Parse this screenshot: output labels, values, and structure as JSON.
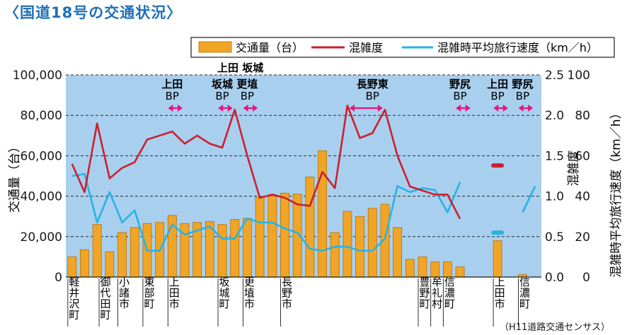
{
  "title": "〈国道18号の交通状況〉",
  "source": "（H11道路交通センサス）",
  "chart_data": {
    "type": "bar",
    "title": "〈国道18号の交通状況〉",
    "legend": [
      {
        "name": "交通量（台）",
        "kind": "bar",
        "color": "#f0a526"
      },
      {
        "name": "混雑度",
        "kind": "line",
        "color": "#cc1f2f"
      },
      {
        "name": "混雑時平均旅行速度（km／h）",
        "kind": "line",
        "color": "#27b3e3"
      }
    ],
    "legend_position": "top-right",
    "grid": true,
    "axes": {
      "left": {
        "label": "交通量（台）",
        "ticks": [
          "0",
          "20,000",
          "40,000",
          "60,000",
          "80,000",
          "100,000"
        ],
        "range": [
          0,
          100000
        ]
      },
      "mid": {
        "label": "混雑度",
        "ticks": [
          "0.0",
          "0.5",
          "1.0",
          "1.5",
          "2.0",
          "2.5"
        ],
        "range": [
          0,
          2.5
        ]
      },
      "right": {
        "label": "混雑時平均旅行速度（km／h）",
        "ticks": [
          "0",
          "20",
          "40",
          "60",
          "80",
          "100"
        ],
        "range": [
          0,
          100
        ]
      }
    },
    "categories": [
      "軽井沢町",
      "御代田町",
      "小諸市",
      "東部町",
      "上田市",
      "坂城町",
      "更埴市",
      "長野市",
      "豊野町",
      "牟礼村",
      "信濃町",
      "上田市",
      "信濃町"
    ],
    "category_slots": [
      1,
      3.5,
      5,
      7,
      9,
      13,
      15,
      18,
      29,
      30,
      31,
      35,
      37
    ],
    "bp_labels": [
      {
        "line1": "上田",
        "line2": "BP",
        "slot": 9
      },
      {
        "line1": "坂城",
        "line2": "BP",
        "slot": 13
      },
      {
        "line1": "更埴",
        "line2": "BP",
        "slot": 15
      },
      {
        "line1": "長野東",
        "line2": "BP",
        "slot": 25
      },
      {
        "line1": "野尻",
        "line2": "BP",
        "slot": 32
      },
      {
        "line1": "上田",
        "line2": "BP",
        "slot": 35
      },
      {
        "line1": "野尻",
        "line2": "BP",
        "slot": 37
      }
    ],
    "bp_arrows": [
      [
        8.5,
        10
      ],
      [
        12.5,
        14
      ],
      [
        14.5,
        16
      ],
      [
        23,
        26
      ],
      [
        31.5,
        33
      ],
      [
        34.5,
        36
      ],
      [
        36.5,
        38
      ]
    ],
    "top_note": "上田 坂城",
    "traffic": [
      [
        1,
        10000
      ],
      [
        2,
        13500
      ],
      [
        3,
        26000
      ],
      [
        4,
        12500
      ],
      [
        5,
        22000
      ],
      [
        6,
        24500
      ],
      [
        7,
        26500
      ],
      [
        8,
        27000
      ],
      [
        9,
        30500
      ],
      [
        10,
        26500
      ],
      [
        11,
        27000
      ],
      [
        12,
        27500
      ],
      [
        13,
        26000
      ],
      [
        14,
        28500
      ],
      [
        15,
        29000
      ],
      [
        16,
        39500
      ],
      [
        17,
        40000
      ],
      [
        18,
        41500
      ],
      [
        19,
        41000
      ],
      [
        20,
        49500
      ],
      [
        21,
        62500
      ],
      [
        22,
        22000
      ],
      [
        23,
        32500
      ],
      [
        24,
        30000
      ],
      [
        25,
        34000
      ],
      [
        26,
        36000
      ],
      [
        27,
        24500
      ],
      [
        28,
        8800
      ],
      [
        29,
        10000
      ],
      [
        30,
        7500
      ],
      [
        31,
        7500
      ],
      [
        32,
        5000
      ],
      [
        35,
        18000
      ],
      [
        37,
        1200
      ]
    ],
    "congestion": [
      [
        1,
        1.4
      ],
      [
        2,
        1.05
      ],
      [
        3,
        1.9
      ],
      [
        4,
        1.22
      ],
      [
        5,
        1.35
      ],
      [
        6,
        1.42
      ],
      [
        7,
        1.7
      ],
      [
        8,
        1.75
      ],
      [
        9,
        1.8
      ],
      [
        10,
        1.65
      ],
      [
        11,
        1.75
      ],
      [
        12,
        1.65
      ],
      [
        13,
        1.6
      ],
      [
        14,
        2.07
      ],
      [
        15,
        1.5
      ],
      [
        16,
        0.98
      ],
      [
        17,
        1.02
      ],
      [
        18,
        0.98
      ],
      [
        19,
        0.9
      ],
      [
        20,
        0.88
      ],
      [
        21,
        1.3
      ],
      [
        22,
        1.1
      ],
      [
        23,
        2.12
      ],
      [
        24,
        1.72
      ],
      [
        25,
        1.78
      ],
      [
        26,
        2.07
      ],
      [
        27,
        1.5
      ],
      [
        28,
        1.12
      ],
      [
        29,
        1.07
      ],
      [
        30,
        1.02
      ],
      [
        31,
        1.02
      ],
      [
        32,
        0.72
      ],
      [
        35,
        1.38
      ]
    ],
    "speed": [
      [
        1,
        50
      ],
      [
        2,
        51
      ],
      [
        3,
        27
      ],
      [
        4,
        42
      ],
      [
        5,
        27
      ],
      [
        6,
        33
      ],
      [
        7,
        13
      ],
      [
        8,
        13
      ],
      [
        9,
        26
      ],
      [
        10,
        21
      ],
      [
        11,
        23
      ],
      [
        12,
        25
      ],
      [
        13,
        19
      ],
      [
        14,
        19
      ],
      [
        15,
        29
      ],
      [
        16,
        27
      ],
      [
        17,
        27
      ],
      [
        18,
        24
      ],
      [
        19,
        22
      ],
      [
        20,
        14
      ],
      [
        21,
        13
      ],
      [
        22,
        15
      ],
      [
        23,
        15
      ],
      [
        24,
        13
      ],
      [
        25,
        13
      ],
      [
        26,
        19
      ],
      [
        27,
        45
      ],
      [
        28,
        42
      ],
      [
        29,
        44
      ],
      [
        30,
        43
      ],
      [
        31,
        32
      ],
      [
        32,
        47
      ],
      [
        35,
        22
      ],
      [
        37,
        32
      ],
      [
        38,
        45
      ]
    ]
  }
}
